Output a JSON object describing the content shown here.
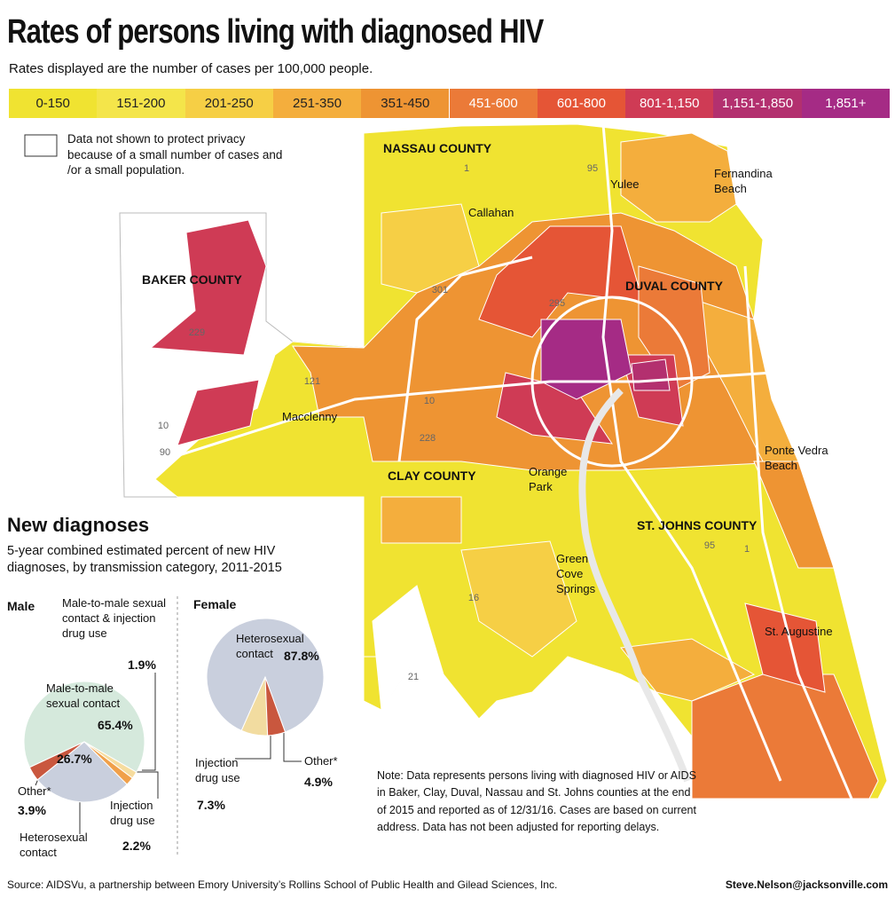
{
  "header": {
    "title": "Rates of persons living with diagnosed HIV",
    "subtitle": "Rates displayed are the number of cases per 100,000 people."
  },
  "legend": {
    "bins": [
      {
        "label": "0-150",
        "color": "#f0e331"
      },
      {
        "label": "151-200",
        "color": "#f4e54a"
      },
      {
        "label": "201-250",
        "color": "#f6cf45"
      },
      {
        "label": "251-350",
        "color": "#f4ae3d"
      },
      {
        "label": "351-450",
        "color": "#ee9433"
      },
      {
        "label": "451-600",
        "color": "#eb7a38"
      },
      {
        "label": "601-800",
        "color": "#e55536"
      },
      {
        "label": "801-1,150",
        "color": "#cf3b55"
      },
      {
        "label": "1,151-1,850",
        "color": "#b3306f"
      },
      {
        "label": "1,851+",
        "color": "#a52b85"
      }
    ],
    "privacy_note": "Data not shown to protect privacy because of a small number of cases and /or a small population."
  },
  "map": {
    "counties": [
      "NASSAU COUNTY",
      "BAKER COUNTY",
      "DUVAL COUNTY",
      "CLAY COUNTY",
      "ST. JOHNS COUNTY"
    ],
    "cities": [
      "Yulee",
      "Fernandina Beach",
      "Callahan",
      "Macclenny",
      "Orange Park",
      "Ponte Vedra Beach",
      "Green Cove Springs",
      "St. Augustine"
    ],
    "highways": [
      "1",
      "95",
      "301",
      "295",
      "229",
      "121",
      "10",
      "228",
      "10",
      "90",
      "16",
      "21",
      "95",
      "1"
    ]
  },
  "new_diagnoses": {
    "title": "New diagnoses",
    "subtitle": "5-year combined estimated percent of new HIV diagnoses, by transmission category, 2011-2015"
  },
  "chart_data": [
    {
      "type": "pie",
      "title": "Male",
      "categories": [
        "Male-to-male sexual contact",
        "Male-to-male sexual contact & injection drug use",
        "Injection drug use",
        "Heterosexual contact",
        "Other*"
      ],
      "values": [
        65.4,
        1.9,
        2.2,
        26.7,
        3.9
      ],
      "value_labels": [
        "65.4%",
        "1.9%",
        "2.2%",
        "26.7%",
        "3.9%"
      ],
      "colors": [
        "#d5e9dc",
        "#f6dc9e",
        "#f0a04a",
        "#c9cfdd",
        "#c9573e"
      ]
    },
    {
      "type": "pie",
      "title": "Female",
      "categories": [
        "Heterosexual contact",
        "Injection drug use",
        "Other*"
      ],
      "values": [
        87.8,
        7.3,
        4.9
      ],
      "value_labels": [
        "87.8%",
        "7.3%",
        "4.9%"
      ],
      "colors": [
        "#c9cfdd",
        "#f2dca0",
        "#c9573e"
      ]
    }
  ],
  "note": "Note: Data represents persons living with diagnosed HIV or AIDS in Baker, Clay, Duval, Nassau and St. Johns counties at the end of 2015 and reported as of 12/31/16. Cases are based on current address. Data has not been adjusted for reporting delays.",
  "source": "Source: AIDSVu, a partnership between  Emory University’s Rollins School of Public Health and Gilead Sciences, Inc.",
  "credit": "Steve.Nelson@jacksonville.com"
}
